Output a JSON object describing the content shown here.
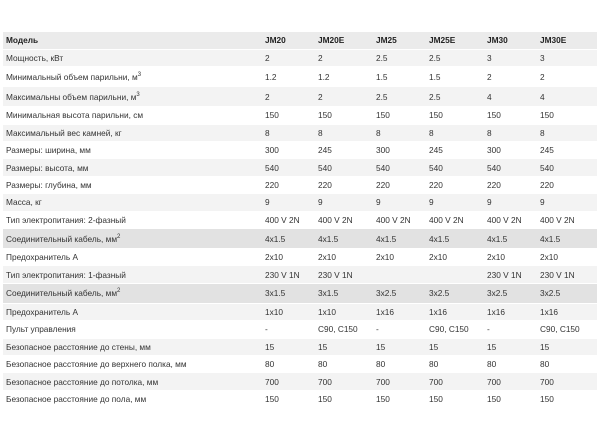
{
  "table": {
    "headers": [
      "Модель",
      "JM20",
      "JM20E",
      "JM25",
      "JM25E",
      "JM30",
      "JM30E"
    ],
    "rows": [
      {
        "label": "Мощность, кВт",
        "values": [
          "2",
          "2",
          "2.5",
          "2.5",
          "3",
          "3"
        ]
      },
      {
        "label": "Минимальный объем парильни, м",
        "sup": "3",
        "values": [
          "1.2",
          "1.2",
          "1.5",
          "1.5",
          "2",
          "2"
        ]
      },
      {
        "label": "Максимальны объем парильни, м",
        "sup": "3",
        "values": [
          "2",
          "2",
          "2.5",
          "2.5",
          "4",
          "4"
        ]
      },
      {
        "label": "Минимальная высота парильни, см",
        "values": [
          "150",
          "150",
          "150",
          "150",
          "150",
          "150"
        ]
      },
      {
        "label": "Максимальный вес камней, кг",
        "values": [
          "8",
          "8",
          "8",
          "8",
          "8",
          "8"
        ]
      },
      {
        "label": "Размеры: ширина, мм",
        "values": [
          "300",
          "245",
          "300",
          "245",
          "300",
          "245"
        ]
      },
      {
        "label": "Размеры: высота, мм",
        "values": [
          "540",
          "540",
          "540",
          "540",
          "540",
          "540"
        ]
      },
      {
        "label": "Размеры: глубина, мм",
        "values": [
          "220",
          "220",
          "220",
          "220",
          "220",
          "220"
        ]
      },
      {
        "label": "Масса, кг",
        "values": [
          "9",
          "9",
          "9",
          "9",
          "9",
          "9"
        ]
      },
      {
        "label": "Тип электропитания: 2-фазный",
        "values": [
          "400 V 2N",
          "400 V 2N",
          "400 V 2N",
          "400 V 2N",
          "400 V 2N",
          "400 V 2N"
        ]
      },
      {
        "label": "Соединительный кабель, мм",
        "sup": "2",
        "values": [
          "4x1.5",
          "4x1.5",
          "4x1.5",
          "4x1.5",
          "4x1.5",
          "4x1.5"
        ]
      },
      {
        "label": "Предохранитель А",
        "values": [
          "2x10",
          "2x10",
          "2x10",
          "2x10",
          "2x10",
          "2x10"
        ]
      },
      {
        "label": "Тип электропитания: 1-фазный",
        "values": [
          "230 V 1N",
          "230 V 1N",
          "",
          "",
          "230 V 1N",
          "230 V 1N"
        ]
      },
      {
        "label": "Соединительный кабель, мм",
        "sup": "2",
        "values": [
          "3x1.5",
          "3x1.5",
          "3x2.5",
          "3x2.5",
          "3x2.5",
          "3x2.5"
        ]
      },
      {
        "label": "Предохранитель А",
        "values": [
          "1x10",
          "1x10",
          "1x16",
          "1x16",
          "1x16",
          "1x16"
        ]
      },
      {
        "label": "Пульт управления",
        "values": [
          "-",
          "C90, C150",
          "-",
          "C90, C150",
          "-",
          "C90, C150"
        ]
      },
      {
        "label": "Безопасное расстояние до стены, мм",
        "values": [
          "15",
          "15",
          "15",
          "15",
          "15",
          "15"
        ]
      },
      {
        "label": "Безопасное расстояние до верхнего полка, мм",
        "values": [
          "80",
          "80",
          "80",
          "80",
          "80",
          "80"
        ]
      },
      {
        "label": "Безопасное расстояние до потолка, мм",
        "values": [
          "700",
          "700",
          "700",
          "700",
          "700",
          "700"
        ]
      },
      {
        "label": "Безопасное расстояние до пола, мм",
        "values": [
          "150",
          "150",
          "150",
          "150",
          "150",
          "150"
        ]
      }
    ]
  }
}
